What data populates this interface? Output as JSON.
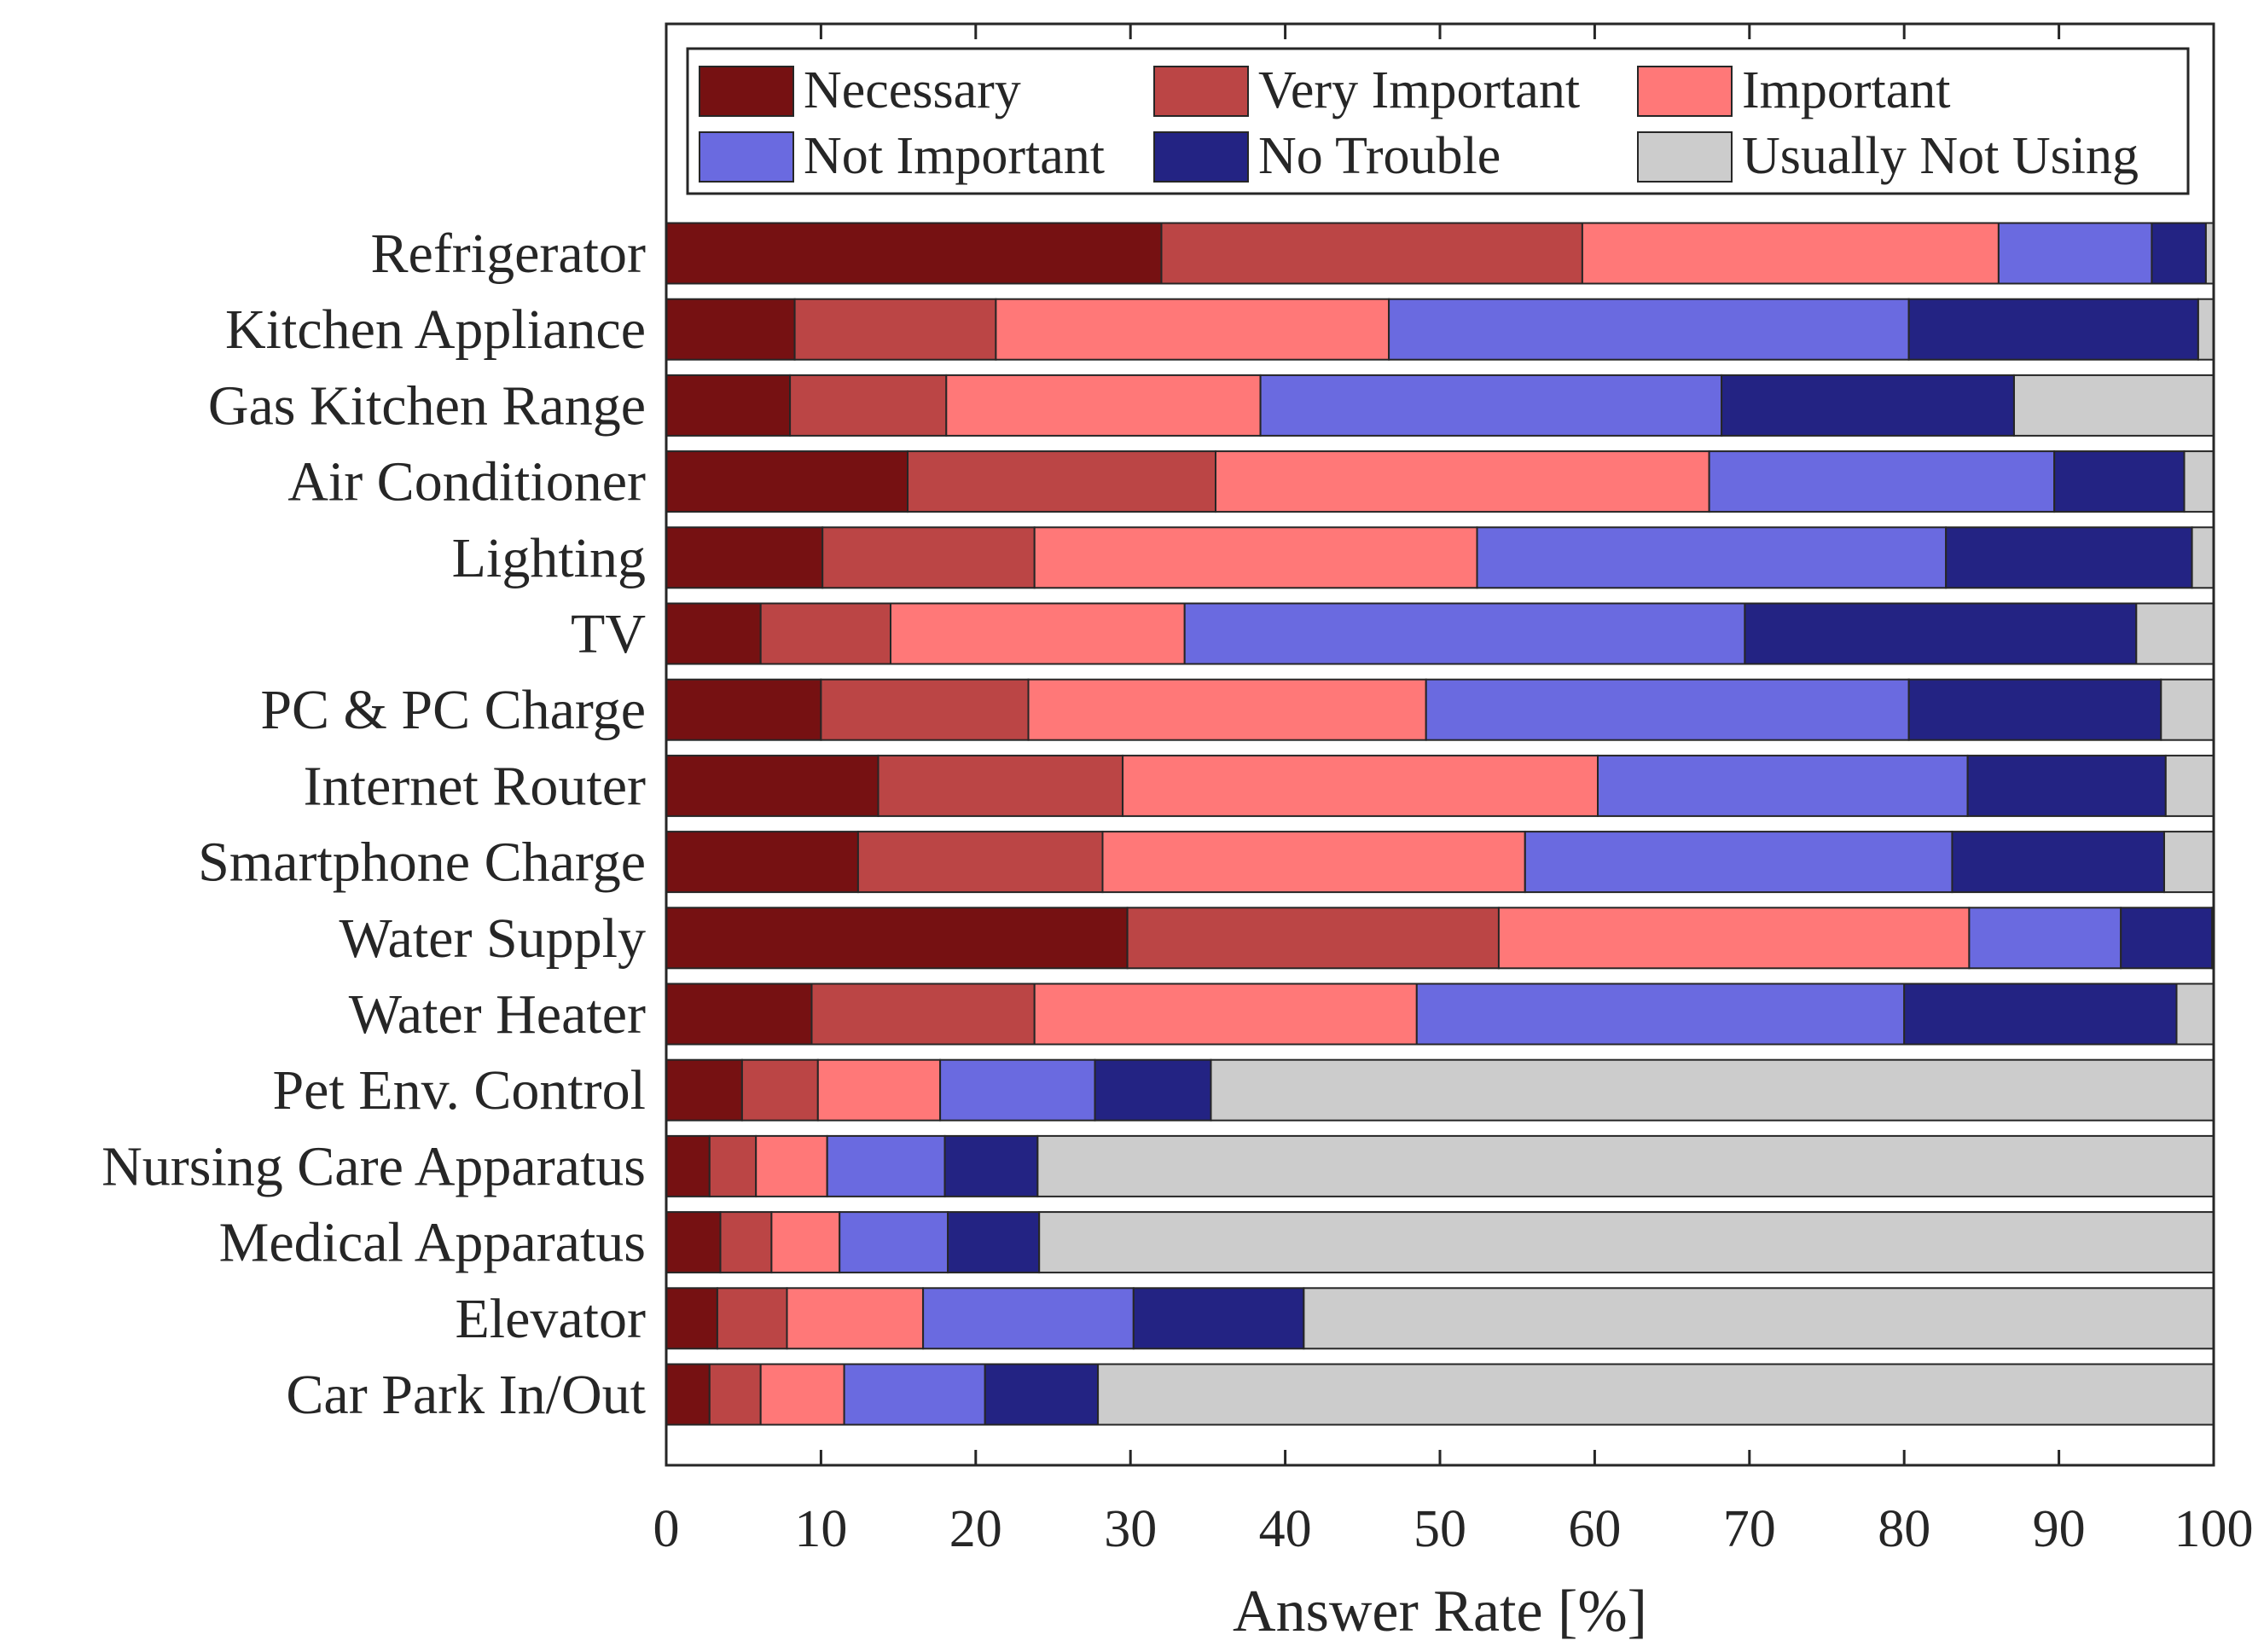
{
  "chart_data": {
    "type": "bar",
    "orientation": "horizontal",
    "stacked": true,
    "xlabel": "Answer Rate [%]",
    "ylabel": "",
    "xlim": [
      0,
      100
    ],
    "xticks": [
      "0",
      "10",
      "20",
      "30",
      "40",
      "50",
      "60",
      "70",
      "80",
      "90",
      "100"
    ],
    "legend_position": "top",
    "categories": [
      "Refrigerator",
      "Kitchen Appliance",
      "Gas Kitchen Range",
      "Air Conditioner",
      "Lighting",
      "TV",
      "PC & PC Charge",
      "Internet Router",
      "Smartphone Charge",
      "Water Supply",
      "Water Heater",
      "Pet Env. Control",
      "Nursing Care Apparatus",
      "Medical Apparatus",
      "Elevator",
      "Car Park In/Out"
    ],
    "series": [
      {
        "name": "Necessary",
        "color": "#761112",
        "values": [
          32.0,
          8.3,
          8.0,
          15.6,
          10.1,
          6.1,
          10.0,
          13.7,
          12.4,
          29.8,
          9.4,
          4.9,
          2.8,
          3.5,
          3.3,
          2.8
        ]
      },
      {
        "name": "Very Important",
        "color": "#bb4545",
        "values": [
          27.2,
          13.0,
          10.1,
          19.9,
          13.7,
          8.4,
          13.4,
          15.8,
          15.8,
          24.0,
          14.4,
          4.9,
          3.0,
          3.3,
          4.5,
          3.3
        ]
      },
      {
        "name": "Important",
        "color": "#ff7878",
        "values": [
          26.9,
          25.4,
          20.3,
          31.9,
          28.6,
          19.0,
          25.7,
          30.7,
          27.3,
          30.4,
          24.7,
          7.9,
          4.6,
          4.4,
          8.8,
          5.4
        ]
      },
      {
        "name": "Not Important",
        "color": "#6a6ae0",
        "values": [
          9.9,
          33.6,
          29.8,
          22.3,
          30.3,
          36.2,
          31.2,
          23.9,
          27.6,
          9.8,
          31.5,
          10.0,
          7.6,
          7.0,
          13.6,
          9.1
        ]
      },
      {
        "name": "No Trouble",
        "color": "#232383",
        "values": [
          3.5,
          18.7,
          18.9,
          8.4,
          15.9,
          25.3,
          16.3,
          12.8,
          13.7,
          5.9,
          17.6,
          7.5,
          6.0,
          5.9,
          11.0,
          7.3
        ]
      },
      {
        "name": "Usually Not Using",
        "color": "#cccccc",
        "values": [
          0.5,
          1.0,
          12.9,
          1.9,
          1.4,
          5.0,
          3.4,
          3.1,
          3.2,
          0.1,
          2.4,
          64.8,
          76.0,
          75.9,
          58.8,
          72.1
        ]
      }
    ]
  }
}
